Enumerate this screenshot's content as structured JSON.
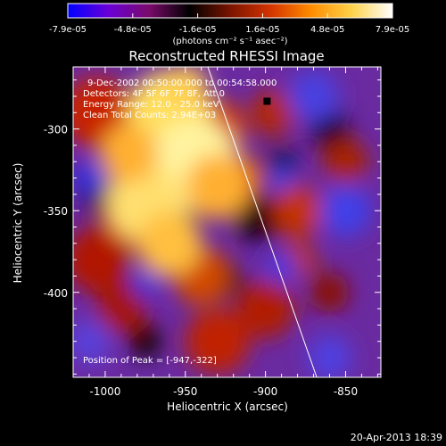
{
  "colorbar": {
    "tick_labels": [
      "-7.9e-05",
      "-4.8e-05",
      "-1.6e-05",
      "1.6e-05",
      "4.8e-05",
      "7.9e-05"
    ],
    "units_label": "(photons cm⁻² s⁻¹ asec⁻²)",
    "range": [
      -7.9e-05,
      7.9e-05
    ],
    "colormap": [
      "#0000ff",
      "#6a00d8",
      "#7a0a6a",
      "#000000",
      "#7a1400",
      "#d43400",
      "#ff8c00",
      "#ffd24a",
      "#ffffff"
    ]
  },
  "title": "Reconstructed RHESSI Image",
  "annotations": {
    "time_range": "9-Dec-2002 00:50:00.000 to 00:54:58.000",
    "detectors": "Detectors: 4F 5F 6F 7F 8F, Att 0",
    "energy": "Energy Range: 12.0 - 25.0 keV",
    "clean": "Clean    Total Counts: 2.94E+03",
    "peak": "Position of Peak = [-947,-322]"
  },
  "x_axis": {
    "label": "Heliocentric X (arcsec)",
    "range": [
      -1020,
      -828
    ],
    "tick_values": [
      -1000,
      -950,
      -900,
      -850
    ],
    "tick_labels": [
      "-1000",
      "-950",
      "-900",
      "-850"
    ]
  },
  "y_axis": {
    "label": "Heliocentric Y (arcsec)",
    "range": [
      -452,
      -262
    ],
    "tick_values": [
      -300,
      -350,
      -400
    ],
    "tick_labels": [
      "-300",
      "-350",
      "-400"
    ]
  },
  "limb_line": {
    "x": [
      -936,
      -868
    ],
    "y": [
      -262,
      -452
    ]
  },
  "peak_position": {
    "x": -947,
    "y": -322
  },
  "timestamp": "20-Apr-2013 18:39"
}
